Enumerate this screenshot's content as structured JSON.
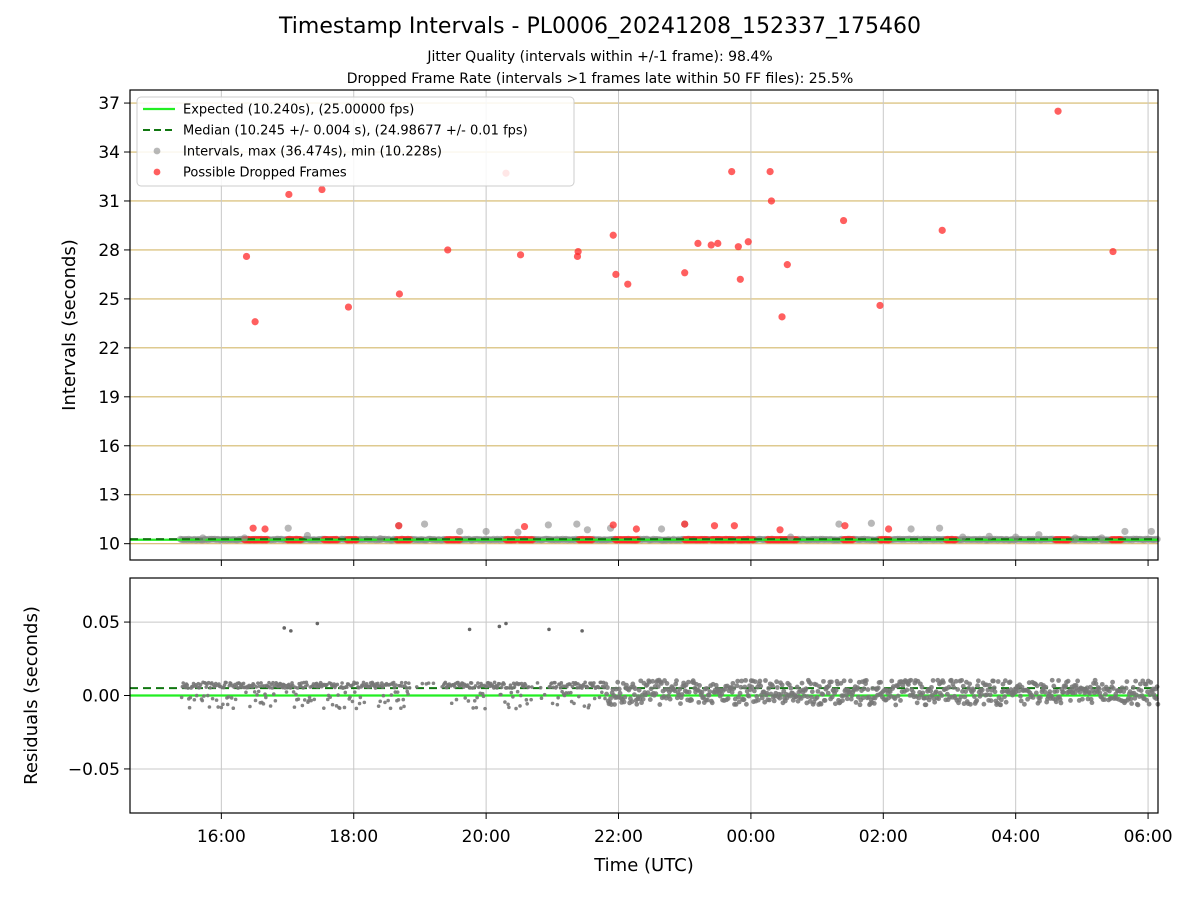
{
  "title": "Timestamp Intervals - PL0006_20241208_152337_175460",
  "subtitle_1": "Jitter Quality (intervals within +/-1 frame): 98.4%",
  "subtitle_2": "Dropped Frame Rate (intervals >1 frames late within 50 FF files): 25.5%",
  "colors": {
    "expected": "#22ee22",
    "median": "#117711",
    "intervals": "#888888",
    "dropped": "#ff2a2a",
    "hgrid_top": "#d4b86a",
    "grid": "#c8c8c8"
  },
  "chart_data": [
    {
      "type": "scatter",
      "panel": "top",
      "ylabel": "Intervals (seconds)",
      "xlabel": "",
      "ylim": [
        9.0,
        37.8
      ],
      "yticks": [
        10,
        13,
        16,
        19,
        22,
        25,
        28,
        31,
        34,
        37
      ],
      "xlim_hours": [
        14.62,
        30.15
      ],
      "xticks": [
        "16:00",
        "18:00",
        "20:00",
        "22:00",
        "00:00",
        "02:00",
        "04:00",
        "06:00"
      ],
      "grid": true,
      "legend_position": "upper-left",
      "legend": [
        {
          "key": "expected",
          "label": "Expected (10.240s), (25.00000 fps)"
        },
        {
          "key": "median",
          "label": "Median (10.245 +/- 0.004 s), (24.98677 +/- 0.01 fps)"
        },
        {
          "key": "intervals",
          "label": "Intervals, max (36.474s), min (10.228s)"
        },
        {
          "key": "dropped",
          "label": "Possible Dropped Frames"
        }
      ],
      "expected_value": 10.24,
      "median_value": 10.245,
      "series": [
        {
          "name": "Possible Dropped Frames",
          "points": [
            [
              16.38,
              27.6
            ],
            [
              16.51,
              23.6
            ],
            [
              17.02,
              31.4
            ],
            [
              17.52,
              31.7
            ],
            [
              17.92,
              24.5
            ],
            [
              18.69,
              25.3
            ],
            [
              19.42,
              28.0
            ],
            [
              20.3,
              32.7
            ],
            [
              20.52,
              27.7
            ],
            [
              21.38,
              27.6
            ],
            [
              21.39,
              27.9
            ],
            [
              21.92,
              28.9
            ],
            [
              21.96,
              26.5
            ],
            [
              22.14,
              25.9
            ],
            [
              23.0,
              26.6
            ],
            [
              23.2,
              28.4
            ],
            [
              23.4,
              28.3
            ],
            [
              23.5,
              28.4
            ],
            [
              23.71,
              32.8
            ],
            [
              23.81,
              28.2
            ],
            [
              23.84,
              26.2
            ],
            [
              23.96,
              28.5
            ],
            [
              24.29,
              32.8
            ],
            [
              24.31,
              31.0
            ],
            [
              24.47,
              23.9
            ],
            [
              24.55,
              27.1
            ],
            [
              25.4,
              29.8
            ],
            [
              25.95,
              24.6
            ],
            [
              26.89,
              29.2
            ],
            [
              28.64,
              36.5
            ],
            [
              29.47,
              27.9
            ],
            [
              16.48,
              10.95
            ],
            [
              16.66,
              10.9
            ],
            [
              18.68,
              11.1
            ],
            [
              20.58,
              11.05
            ],
            [
              21.92,
              11.15
            ],
            [
              22.27,
              10.9
            ],
            [
              23.0,
              11.2
            ],
            [
              23.45,
              11.1
            ],
            [
              23.75,
              11.1
            ],
            [
              24.44,
              10.85
            ],
            [
              25.42,
              11.1
            ],
            [
              26.08,
              10.9
            ]
          ],
          "band_segments": [
            [
              16.35,
              16.7
            ],
            [
              17.0,
              17.2
            ],
            [
              17.55,
              17.75
            ],
            [
              17.9,
              18.05
            ],
            [
              18.65,
              18.85
            ],
            [
              19.4,
              19.6
            ],
            [
              20.3,
              20.45
            ],
            [
              20.5,
              20.7
            ],
            [
              21.4,
              21.6
            ],
            [
              21.95,
              22.3
            ],
            [
              23.0,
              23.35
            ],
            [
              23.4,
              23.75
            ],
            [
              23.8,
              24.05
            ],
            [
              24.25,
              24.7
            ],
            [
              25.4,
              25.55
            ],
            [
              25.95,
              26.1
            ],
            [
              26.95,
              27.1
            ],
            [
              28.6,
              28.8
            ],
            [
              29.45,
              29.6
            ]
          ]
        },
        {
          "name": "Intervals, max (36.474s), min (10.228s)",
          "points": [
            [
              15.72,
              10.35
            ],
            [
              16.35,
              10.35
            ],
            [
              17.01,
              10.95
            ],
            [
              17.3,
              10.5
            ],
            [
              18.4,
              10.3
            ],
            [
              18.68,
              11.1
            ],
            [
              19.07,
              11.2
            ],
            [
              19.6,
              10.75
            ],
            [
              20.0,
              10.75
            ],
            [
              20.48,
              10.7
            ],
            [
              20.94,
              11.15
            ],
            [
              21.37,
              11.2
            ],
            [
              21.53,
              10.85
            ],
            [
              21.88,
              10.95
            ],
            [
              22.65,
              10.9
            ],
            [
              23.0,
              11.2
            ],
            [
              24.6,
              10.4
            ],
            [
              25.33,
              11.2
            ],
            [
              25.82,
              11.25
            ],
            [
              26.42,
              10.9
            ],
            [
              26.85,
              10.95
            ],
            [
              27.2,
              10.4
            ],
            [
              27.6,
              10.45
            ],
            [
              28.0,
              10.4
            ],
            [
              28.35,
              10.55
            ],
            [
              28.9,
              10.35
            ],
            [
              29.3,
              10.35
            ],
            [
              29.65,
              10.75
            ],
            [
              30.05,
              10.75
            ]
          ],
          "band_range": [
            15.38,
            30.15
          ]
        }
      ]
    },
    {
      "type": "scatter",
      "panel": "bottom",
      "ylabel": "Residuals (seconds)",
      "xlabel": "Time (UTC)",
      "ylim": [
        -0.08,
        0.08
      ],
      "yticks": [
        0.05,
        0.0,
        -0.05
      ],
      "ytick_labels": [
        "0.05",
        "0.00",
        "−0.05"
      ],
      "xlim_hours": [
        14.62,
        30.15
      ],
      "xticks": [
        "16:00",
        "18:00",
        "20:00",
        "22:00",
        "00:00",
        "02:00",
        "04:00",
        "06:00"
      ],
      "grid": true,
      "expected_value": 0.0,
      "median_value": 0.005,
      "outliers": [
        [
          16.95,
          0.046
        ],
        [
          17.05,
          0.044
        ],
        [
          17.45,
          0.049
        ],
        [
          19.75,
          0.045
        ],
        [
          20.2,
          0.047
        ],
        [
          20.3,
          0.049
        ],
        [
          20.95,
          0.045
        ],
        [
          21.45,
          0.044
        ]
      ]
    }
  ]
}
